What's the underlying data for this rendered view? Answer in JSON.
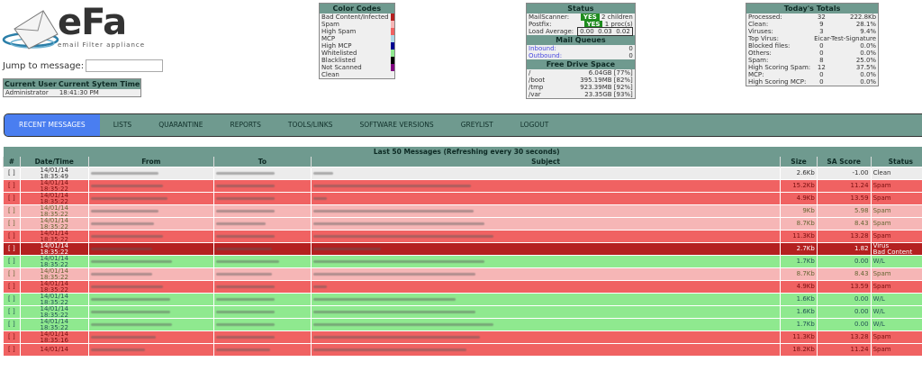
{
  "logo": {
    "name": "eFa",
    "tagline": "email Filter appliance"
  },
  "jump": {
    "label": "Jump to message:",
    "value": ""
  },
  "user": {
    "h_user": "Current User",
    "h_time": "Current Sytem Time",
    "user": "Administrator",
    "time": "18:41:30 PM"
  },
  "color_codes": {
    "title": "Color Codes",
    "items": [
      {
        "label": "Bad Content/Infected",
        "color": "#b42020"
      },
      {
        "label": "Spam",
        "color": "#f6b6b6"
      },
      {
        "label": "High Spam",
        "color": "#f06262"
      },
      {
        "label": "MCP",
        "color": "#add8e6"
      },
      {
        "label": "High MCP",
        "color": "#000090"
      },
      {
        "label": "Whitelisted",
        "color": "#8fe98f"
      },
      {
        "label": "Blacklisted",
        "color": "#000000"
      },
      {
        "label": "Not Scanned",
        "color": "#800080"
      },
      {
        "label": "Clean",
        "color": "#efefef"
      }
    ]
  },
  "status": {
    "title": "Status",
    "mailscanner": {
      "label": "MailScanner:",
      "state": "YES",
      "info": "2 children"
    },
    "postfix": {
      "label": "Postfix:",
      "state": "YES",
      "info": "1 proc(s)"
    },
    "load": {
      "label": "Load Average:",
      "value": "0.00  0.03  0.02"
    },
    "queues_title": "Mail Queues",
    "inbound": {
      "label": "Inbound:",
      "value": "0"
    },
    "outbound": {
      "label": "Outbound:",
      "value": "0"
    },
    "drive_title": "Free Drive Space",
    "drives": [
      {
        "mount": "/",
        "free": "6.04GB [77%]"
      },
      {
        "mount": "/boot",
        "free": "395.19MB [82%]"
      },
      {
        "mount": "/tmp",
        "free": "923.39MB [92%]"
      },
      {
        "mount": "/var",
        "free": "23.35GB [93%]"
      }
    ]
  },
  "totals": {
    "title": "Today's Totals",
    "rows": [
      {
        "label": "Processed:",
        "count": "32",
        "value": "222.8Kb"
      },
      {
        "label": "Clean:",
        "count": "9",
        "value": "28.1%"
      },
      {
        "label": "Viruses:",
        "count": "3",
        "value": "9.4%"
      },
      {
        "label": "Top Virus:",
        "count": "",
        "value": "Eicar-Test-Signature"
      },
      {
        "label": "Blocked files:",
        "count": "0",
        "value": "0.0%"
      },
      {
        "label": "Others:",
        "count": "0",
        "value": "0.0%"
      },
      {
        "label": "Spam:",
        "count": "8",
        "value": "25.0%"
      },
      {
        "label": "High Scoring Spam:",
        "count": "12",
        "value": "37.5%"
      },
      {
        "label": "MCP:",
        "count": "0",
        "value": "0.0%"
      },
      {
        "label": "High Scoring MCP:",
        "count": "0",
        "value": "0.0%"
      }
    ]
  },
  "nav": [
    "RECENT MESSAGES",
    "LISTS",
    "QUARANTINE",
    "REPORTS",
    "TOOLS/LINKS",
    "SOFTWARE VERSIONS",
    "GREYLIST",
    "LOGOUT"
  ],
  "messages": {
    "title": "Last 50 Messages (Refreshing every 30 seconds)",
    "columns": [
      "#",
      "Date/Time",
      "From",
      "To",
      "Subject",
      "Size",
      "SA Score",
      "Status"
    ],
    "rows": [
      {
        "mark": "[ ]",
        "date": "14/01/14",
        "time": "18:35:49",
        "size": "2.6Kb",
        "score": "-1.00",
        "status": "Clean",
        "type": "clean"
      },
      {
        "mark": "[ ]",
        "date": "14/01/14",
        "time": "18:35:22",
        "size": "15.2Kb",
        "score": "11.24",
        "status": "Spam",
        "type": "hspam"
      },
      {
        "mark": "[ ]",
        "date": "14/01/14",
        "time": "18:35:22",
        "size": "4.9Kb",
        "score": "13.59",
        "status": "Spam",
        "type": "hspam"
      },
      {
        "mark": "[ ]",
        "date": "14/01/14",
        "time": "18:35:22",
        "size": "9Kb",
        "score": "5.98",
        "status": "Spam",
        "type": "spam"
      },
      {
        "mark": "[ ]",
        "date": "14/01/14",
        "time": "18:35:22",
        "size": "8.7Kb",
        "score": "8.43",
        "status": "Spam",
        "type": "spam"
      },
      {
        "mark": "[ ]",
        "date": "14/01/14",
        "time": "18:35:22",
        "size": "11.3Kb",
        "score": "13.28",
        "status": "Spam",
        "type": "hspam"
      },
      {
        "mark": "[ ]",
        "date": "14/01/14",
        "time": "18:35:22",
        "size": "2.7Kb",
        "score": "1.82",
        "status": "Virus",
        "status2": "Bad Content",
        "type": "virus"
      },
      {
        "mark": "[ ]",
        "date": "14/01/14",
        "time": "18:35:22",
        "size": "1.7Kb",
        "score": "0.00",
        "status": "W/L",
        "type": "wl"
      },
      {
        "mark": "[ ]",
        "date": "14/01/14",
        "time": "18:35:22",
        "size": "8.7Kb",
        "score": "8.43",
        "status": "Spam",
        "type": "spam"
      },
      {
        "mark": "[ ]",
        "date": "14/01/14",
        "time": "18:35:22",
        "size": "4.9Kb",
        "score": "13.59",
        "status": "Spam",
        "type": "hspam"
      },
      {
        "mark": "[ ]",
        "date": "14/01/14",
        "time": "18:35:22",
        "size": "1.6Kb",
        "score": "0.00",
        "status": "W/L",
        "type": "wl"
      },
      {
        "mark": "[ ]",
        "date": "14/01/14",
        "time": "18:35:22",
        "size": "1.6Kb",
        "score": "0.00",
        "status": "W/L",
        "type": "wl"
      },
      {
        "mark": "[ ]",
        "date": "14/01/14",
        "time": "18:35:22",
        "size": "1.7Kb",
        "score": "0.00",
        "status": "W/L",
        "type": "wl"
      },
      {
        "mark": "[ ]",
        "date": "14/01/14",
        "time": "18:35:16",
        "size": "11.3Kb",
        "score": "13.28",
        "status": "Spam",
        "type": "hspam"
      },
      {
        "mark": "[ ]",
        "date": "14/01/14",
        "time": "",
        "size": "18.2Kb",
        "score": "11.24",
        "status": "Spam",
        "type": "hspam"
      }
    ]
  }
}
